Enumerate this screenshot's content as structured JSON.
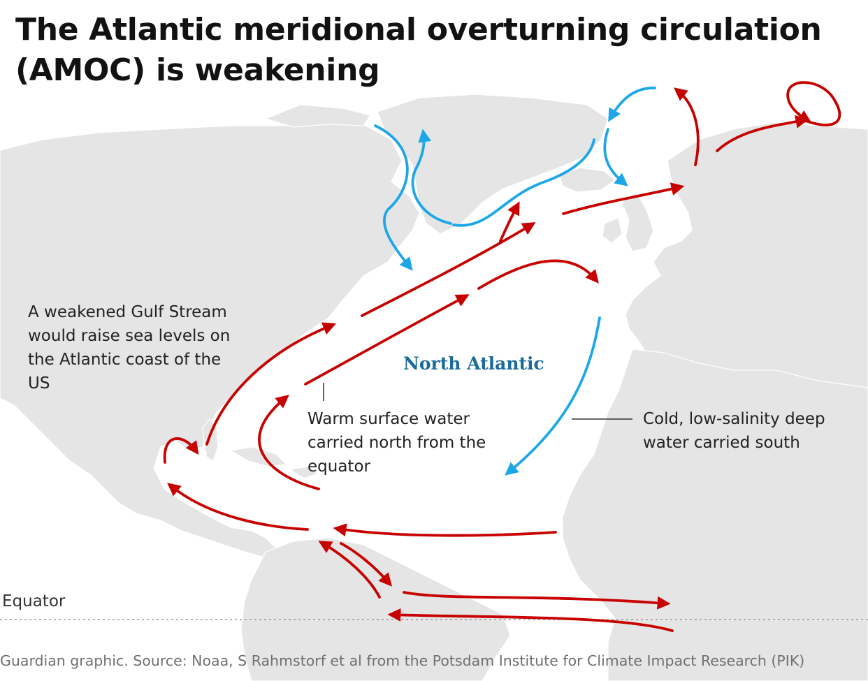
{
  "title": "The Atlantic meridional overturning circulation (AMOC) is weakening",
  "annotations": {
    "gulf_stream": "A weakened Gulf Stream would raise sea levels on the Atlantic coast of the US",
    "warm_water": "Warm surface water carried north from the equator",
    "cold_water": "Cold, low-salinity deep water carried south"
  },
  "ocean_label": "North Atlantic",
  "equator_label": "Equator",
  "source": "Guardian graphic. Source: Noaa, S Rahmstorf et al from the Potsdam Institute for Climate Impact Research (PIK)",
  "legend_colors": {
    "warm_current": "#c70000",
    "cold_current": "#1ea7e8",
    "land": "#e5e5e5",
    "ocean": "#ffffff"
  }
}
